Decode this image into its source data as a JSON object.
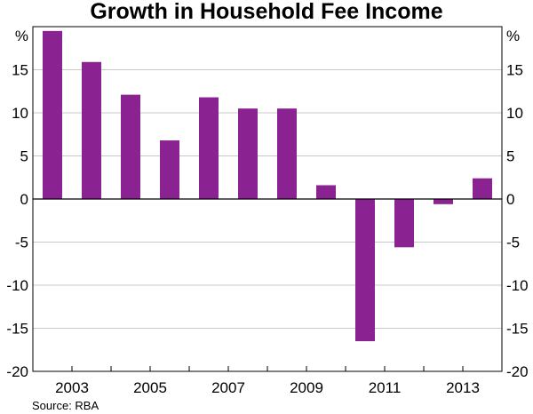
{
  "chart_data": {
    "type": "bar",
    "title": "Growth in Household Fee Income",
    "xlabel": "",
    "ylabel": "%",
    "ylabel_right": "%",
    "ylim": [
      -20,
      20
    ],
    "yticks": [
      -20,
      -15,
      -10,
      -5,
      0,
      5,
      10,
      15
    ],
    "grid": true,
    "categories": [
      "2002",
      "2003",
      "2004",
      "2005",
      "2006",
      "2007",
      "2008",
      "2009",
      "2010",
      "2011",
      "2012",
      "2013"
    ],
    "x_tick_labels": [
      "2003",
      "2005",
      "2007",
      "2009",
      "2011",
      "2013"
    ],
    "series": [
      {
        "name": "Growth in Household Fee Income",
        "color": "#8b2291",
        "values": [
          19.5,
          15.9,
          12.1,
          6.8,
          11.8,
          10.5,
          10.5,
          1.6,
          -16.5,
          -5.6,
          -0.6,
          2.4
        ]
      }
    ],
    "source": "Source: RBA"
  }
}
